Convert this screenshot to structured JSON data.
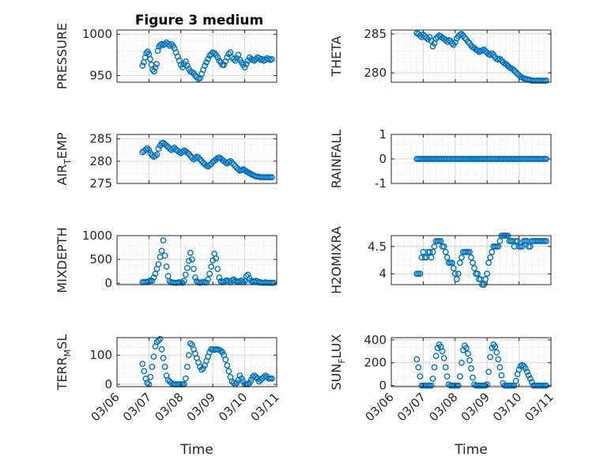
{
  "figure": {
    "title": "Figure 3 medium",
    "marker_color": "#0072BD",
    "x_ticks": [
      "03/06",
      "03/07",
      "03/08",
      "03/09",
      "03/10",
      "03/11"
    ],
    "x_label": "Time"
  },
  "chart_data": [
    {
      "type": "scatter",
      "ylabel": "PRESSURE",
      "yticks": [
        950,
        1000
      ],
      "ylim": [
        942,
        1005
      ],
      "grid": true,
      "x": [
        0.8,
        0.84,
        0.88,
        0.92,
        0.96,
        1.0,
        1.04,
        1.08,
        1.12,
        1.16,
        1.2,
        1.24,
        1.28,
        1.32,
        1.36,
        1.4,
        1.45,
        1.5,
        1.55,
        1.6,
        1.65,
        1.7,
        1.75,
        1.8,
        1.85,
        1.9,
        1.95,
        2.0,
        2.05,
        2.1,
        2.15,
        2.2,
        2.25,
        2.3,
        2.35,
        2.4,
        2.45,
        2.5,
        2.55,
        2.6,
        2.65,
        2.7,
        2.75,
        2.8,
        2.85,
        2.9,
        2.95,
        3.0,
        3.05,
        3.1,
        3.15,
        3.2,
        3.25,
        3.3,
        3.35,
        3.4,
        3.45,
        3.5,
        3.55,
        3.6,
        3.65,
        3.7,
        3.75,
        3.8,
        3.85,
        3.9,
        3.95,
        4.0,
        4.05,
        4.1,
        4.15,
        4.2,
        4.25,
        4.3,
        4.35,
        4.4,
        4.45,
        4.5,
        4.55,
        4.6,
        4.65,
        4.7,
        4.75,
        4.8,
        4.85
      ],
      "y": [
        962,
        966,
        972,
        977,
        979,
        976,
        970,
        963,
        957,
        955,
        960,
        964,
        980,
        985,
        987,
        988,
        987,
        988,
        990,
        988,
        986,
        988,
        986,
        983,
        978,
        973,
        968,
        963,
        960,
        964,
        967,
        962,
        958,
        955,
        954,
        953,
        950,
        948,
        946,
        947,
        952,
        957,
        962,
        966,
        970,
        974,
        976,
        978,
        977,
        975,
        972,
        968,
        966,
        963,
        963,
        967,
        972,
        976,
        978,
        972,
        970,
        968,
        971,
        975,
        969,
        966,
        963,
        960,
        964,
        968,
        972,
        970,
        969,
        968,
        970,
        972,
        971,
        969,
        970,
        968,
        969,
        971,
        970,
        969,
        970
      ]
    },
    {
      "type": "scatter",
      "ylabel": "THETA",
      "yticks": [
        280,
        285
      ],
      "ylim": [
        278.8,
        285.5
      ],
      "grid": true,
      "x": [
        0.8,
        0.85,
        0.9,
        0.95,
        1.0,
        1.05,
        1.1,
        1.15,
        1.2,
        1.25,
        1.3,
        1.35,
        1.4,
        1.45,
        1.5,
        1.55,
        1.6,
        1.65,
        1.7,
        1.75,
        1.8,
        1.85,
        1.9,
        1.95,
        2.0,
        2.05,
        2.1,
        2.15,
        2.2,
        2.25,
        2.3,
        2.35,
        2.4,
        2.45,
        2.5,
        2.55,
        2.6,
        2.65,
        2.7,
        2.75,
        2.8,
        2.85,
        2.9,
        2.95,
        3.0,
        3.05,
        3.1,
        3.15,
        3.2,
        3.25,
        3.3,
        3.35,
        3.4,
        3.45,
        3.5,
        3.55,
        3.6,
        3.65,
        3.7,
        3.75,
        3.8,
        3.85,
        3.9,
        3.95,
        4.0,
        4.05,
        4.1,
        4.15,
        4.2,
        4.25,
        4.3,
        4.35,
        4.4,
        4.45,
        4.5,
        4.55,
        4.6,
        4.65,
        4.7,
        4.75,
        4.8,
        4.85
      ],
      "y": [
        285.1,
        285.0,
        284.8,
        284.6,
        284.9,
        284.7,
        284.5,
        284.3,
        284.6,
        284.1,
        283.4,
        283.8,
        284.4,
        284.6,
        284.8,
        284.7,
        284.5,
        284.4,
        284.2,
        284.0,
        284.2,
        284.1,
        283.8,
        283.6,
        283.9,
        284.4,
        284.7,
        284.9,
        285.0,
        284.8,
        284.5,
        284.3,
        284.0,
        283.8,
        283.5,
        283.3,
        283.2,
        283.0,
        282.9,
        282.7,
        282.8,
        282.9,
        283.0,
        282.8,
        282.6,
        282.4,
        282.3,
        282.5,
        282.3,
        282.0,
        281.8,
        281.7,
        281.8,
        281.6,
        281.4,
        281.2,
        281.1,
        280.9,
        280.7,
        280.6,
        280.5,
        280.3,
        280.1,
        279.9,
        279.7,
        279.5,
        279.4,
        279.3,
        279.2,
        279.2,
        279.1,
        279.1,
        279.0,
        279.0,
        279.0,
        279.0,
        279.0,
        279.0,
        279.0,
        279.0,
        279.0,
        279.0
      ]
    },
    {
      "type": "scatter",
      "ylabel": "AIR_TEMP",
      "yticks": [
        275,
        280,
        285
      ],
      "ylim": [
        275,
        286
      ],
      "grid": true,
      "x": [
        0.8,
        0.85,
        0.9,
        0.95,
        1.0,
        1.05,
        1.1,
        1.15,
        1.2,
        1.25,
        1.3,
        1.35,
        1.4,
        1.45,
        1.5,
        1.55,
        1.6,
        1.65,
        1.7,
        1.75,
        1.8,
        1.85,
        1.9,
        1.95,
        2.0,
        2.05,
        2.1,
        2.15,
        2.2,
        2.25,
        2.3,
        2.35,
        2.4,
        2.45,
        2.5,
        2.55,
        2.6,
        2.65,
        2.7,
        2.75,
        2.8,
        2.85,
        2.9,
        2.95,
        3.0,
        3.05,
        3.1,
        3.15,
        3.2,
        3.25,
        3.3,
        3.35,
        3.4,
        3.45,
        3.5,
        3.55,
        3.6,
        3.65,
        3.7,
        3.75,
        3.8,
        3.85,
        3.9,
        3.95,
        4.0,
        4.05,
        4.1,
        4.15,
        4.2,
        4.25,
        4.3,
        4.35,
        4.4,
        4.45,
        4.5,
        4.55,
        4.6,
        4.65,
        4.7,
        4.75,
        4.8,
        4.85
      ],
      "y": [
        282.0,
        282.3,
        282.6,
        282.9,
        282.5,
        281.8,
        281.3,
        281.0,
        281.2,
        281.5,
        282.8,
        283.5,
        284.0,
        284.1,
        283.8,
        283.5,
        283.2,
        282.8,
        282.5,
        282.8,
        283.0,
        282.6,
        282.3,
        282.0,
        281.8,
        282.1,
        282.4,
        282.2,
        281.9,
        281.6,
        281.2,
        280.8,
        280.4,
        280.7,
        281.0,
        280.8,
        280.4,
        280.0,
        279.6,
        279.3,
        279.0,
        278.8,
        279.1,
        279.4,
        279.8,
        280.1,
        280.4,
        280.7,
        280.8,
        280.6,
        280.3,
        280.0,
        279.7,
        279.5,
        279.8,
        280.0,
        279.7,
        279.3,
        278.9,
        278.5,
        278.2,
        277.9,
        278.0,
        278.2,
        278.0,
        277.7,
        277.5,
        277.3,
        277.1,
        276.9,
        276.7,
        276.6,
        276.5,
        276.5,
        276.4,
        276.4,
        276.4,
        276.4,
        276.4,
        276.4,
        276.4,
        276.4
      ]
    },
    {
      "type": "scatter",
      "ylabel": "RAINFALL",
      "yticks": [
        -1,
        0,
        1
      ],
      "ylim": [
        -1,
        1
      ],
      "grid": true,
      "x": [
        0.8,
        0.85,
        0.9,
        0.95,
        1.0,
        1.05,
        1.1,
        1.15,
        1.2,
        1.25,
        1.3,
        1.35,
        1.4,
        1.45,
        1.5,
        1.55,
        1.6,
        1.65,
        1.7,
        1.75,
        1.8,
        1.85,
        1.9,
        1.95,
        2.0,
        2.05,
        2.1,
        2.15,
        2.2,
        2.25,
        2.3,
        2.35,
        2.4,
        2.45,
        2.5,
        2.55,
        2.6,
        2.65,
        2.7,
        2.75,
        2.8,
        2.85,
        2.9,
        2.95,
        3.0,
        3.05,
        3.1,
        3.15,
        3.2,
        3.25,
        3.3,
        3.35,
        3.4,
        3.45,
        3.5,
        3.55,
        3.6,
        3.65,
        3.7,
        3.75,
        3.8,
        3.85,
        3.9,
        3.95,
        4.0,
        4.05,
        4.1,
        4.15,
        4.2,
        4.25,
        4.3,
        4.35,
        4.4,
        4.45,
        4.5,
        4.55,
        4.6,
        4.65,
        4.7,
        4.75,
        4.8,
        4.85
      ],
      "y": [
        0,
        0,
        0,
        0,
        0,
        0,
        0,
        0,
        0,
        0,
        0,
        0,
        0,
        0,
        0,
        0,
        0,
        0,
        0,
        0,
        0,
        0,
        0,
        0,
        0,
        0,
        0,
        0,
        0,
        0,
        0,
        0,
        0,
        0,
        0,
        0,
        0,
        0,
        0,
        0,
        0,
        0,
        0,
        0,
        0,
        0,
        0,
        0,
        0,
        0,
        0,
        0,
        0,
        0,
        0,
        0,
        0,
        0,
        0,
        0,
        0,
        0,
        0,
        0,
        0,
        0,
        0,
        0,
        0,
        0,
        0,
        0,
        0,
        0,
        0,
        0,
        0,
        0,
        0,
        0,
        0,
        0
      ]
    },
    {
      "type": "scatter",
      "ylabel": "MIXDEPTH",
      "yticks": [
        0,
        500,
        1000
      ],
      "ylim": [
        -30,
        1000
      ],
      "grid": true,
      "x": [
        0.8,
        0.85,
        0.9,
        0.95,
        1.0,
        1.05,
        1.1,
        1.15,
        1.2,
        1.25,
        1.3,
        1.35,
        1.4,
        1.45,
        1.5,
        1.55,
        1.6,
        1.65,
        1.7,
        1.75,
        1.8,
        1.85,
        1.9,
        1.95,
        2.0,
        2.05,
        2.1,
        2.15,
        2.2,
        2.25,
        2.3,
        2.35,
        2.4,
        2.45,
        2.5,
        2.55,
        2.6,
        2.65,
        2.7,
        2.75,
        2.8,
        2.85,
        2.9,
        2.95,
        3.0,
        3.05,
        3.1,
        3.15,
        3.2,
        3.25,
        3.3,
        3.35,
        3.4,
        3.45,
        3.5,
        3.55,
        3.6,
        3.65,
        3.7,
        3.75,
        3.8,
        3.85,
        3.9,
        3.95,
        4.0,
        4.05,
        4.1,
        4.15,
        4.2,
        4.25,
        4.3,
        4.35,
        4.4,
        4.45,
        4.5,
        4.55,
        4.6,
        4.65,
        4.7,
        4.75,
        4.8,
        4.85,
        4.9
      ],
      "y": [
        20,
        25,
        30,
        20,
        40,
        60,
        50,
        120,
        200,
        300,
        400,
        550,
        680,
        900,
        580,
        350,
        150,
        40,
        20,
        15,
        10,
        10,
        15,
        20,
        20,
        10,
        50,
        180,
        320,
        470,
        640,
        500,
        300,
        120,
        40,
        20,
        10,
        20,
        30,
        20,
        15,
        80,
        200,
        350,
        480,
        620,
        520,
        300,
        120,
        40,
        20,
        30,
        50,
        60,
        40,
        20,
        60,
        80,
        50,
        40,
        30,
        40,
        60,
        20,
        40,
        150,
        180,
        100,
        50,
        40,
        30,
        50,
        40,
        20,
        20,
        10,
        10,
        20,
        10,
        10,
        10,
        10,
        10
      ]
    },
    {
      "type": "scatter",
      "ylabel": "H2OMIXRA",
      "yticks": [
        4,
        4.5
      ],
      "ylim": [
        3.8,
        4.7
      ],
      "grid": true,
      "x": [
        0.8,
        0.85,
        0.9,
        0.95,
        1.0,
        1.05,
        1.1,
        1.15,
        1.2,
        1.25,
        1.3,
        1.35,
        1.4,
        1.45,
        1.5,
        1.55,
        1.6,
        1.65,
        1.7,
        1.75,
        1.8,
        1.85,
        1.9,
        1.95,
        2.0,
        2.05,
        2.1,
        2.15,
        2.2,
        2.25,
        2.3,
        2.35,
        2.4,
        2.45,
        2.5,
        2.55,
        2.6,
        2.65,
        2.7,
        2.75,
        2.8,
        2.85,
        2.9,
        2.95,
        3.0,
        3.05,
        3.1,
        3.15,
        3.2,
        3.25,
        3.3,
        3.35,
        3.4,
        3.45,
        3.5,
        3.55,
        3.6,
        3.65,
        3.7,
        3.75,
        3.8,
        3.85,
        3.9,
        3.95,
        4.0,
        4.05,
        4.1,
        4.15,
        4.2,
        4.25,
        4.3,
        4.35,
        4.4,
        4.45,
        4.5,
        4.55,
        4.6,
        4.65,
        4.7,
        4.75,
        4.8,
        4.85
      ],
      "y": [
        4.0,
        4.0,
        4.0,
        4.3,
        4.4,
        4.3,
        4.3,
        4.4,
        4.4,
        4.3,
        4.4,
        4.5,
        4.6,
        4.6,
        4.6,
        4.6,
        4.5,
        4.5,
        4.4,
        4.3,
        4.2,
        4.2,
        4.2,
        4.1,
        4.0,
        3.9,
        4.0,
        4.2,
        4.3,
        4.4,
        4.4,
        4.4,
        4.4,
        4.4,
        4.3,
        4.2,
        4.1,
        4.0,
        4.0,
        3.9,
        3.9,
        3.8,
        3.8,
        3.9,
        4.0,
        4.2,
        4.3,
        4.4,
        4.5,
        4.5,
        4.5,
        4.5,
        4.6,
        4.7,
        4.7,
        4.7,
        4.7,
        4.7,
        4.6,
        4.6,
        4.6,
        4.5,
        4.6,
        4.6,
        4.5,
        4.5,
        4.5,
        4.6,
        4.6,
        4.6,
        4.5,
        4.5,
        4.6,
        4.6,
        4.6,
        4.6,
        4.6,
        4.6,
        4.6,
        4.6,
        4.6,
        4.6
      ]
    },
    {
      "type": "scatter",
      "ylabel": "TERR_MSL",
      "yticks": [
        0,
        100
      ],
      "ylim": [
        -8,
        160
      ],
      "grid": true,
      "x": [
        0.8,
        0.85,
        0.9,
        0.95,
        1.0,
        1.05,
        1.1,
        1.15,
        1.2,
        1.25,
        1.3,
        1.35,
        1.4,
        1.45,
        1.5,
        1.55,
        1.6,
        1.65,
        1.7,
        1.75,
        1.8,
        1.85,
        1.9,
        1.95,
        2.0,
        2.05,
        2.1,
        2.15,
        2.2,
        2.25,
        2.3,
        2.35,
        2.4,
        2.45,
        2.5,
        2.55,
        2.6,
        2.65,
        2.7,
        2.75,
        2.8,
        2.85,
        2.9,
        2.95,
        3.0,
        3.05,
        3.1,
        3.15,
        3.2,
        3.25,
        3.3,
        3.35,
        3.4,
        3.45,
        3.5,
        3.55,
        3.6,
        3.65,
        3.7,
        3.75,
        3.8,
        3.85,
        3.9,
        3.95,
        4.0,
        4.05,
        4.1,
        4.15,
        4.2,
        4.25,
        4.3,
        4.35,
        4.4,
        4.45,
        4.5,
        4.55,
        4.6,
        4.65,
        4.7,
        4.75,
        4.8,
        4.85
      ],
      "y": [
        70,
        45,
        20,
        5,
        0,
        25,
        60,
        95,
        130,
        145,
        150,
        155,
        120,
        90,
        60,
        30,
        15,
        10,
        5,
        0,
        0,
        0,
        0,
        0,
        0,
        0,
        0,
        20,
        60,
        100,
        140,
        135,
        120,
        105,
        90,
        75,
        60,
        50,
        55,
        65,
        80,
        95,
        110,
        120,
        120,
        118,
        120,
        120,
        118,
        115,
        110,
        100,
        85,
        65,
        45,
        25,
        10,
        5,
        0,
        5,
        15,
        30,
        20,
        10,
        0,
        0,
        0,
        5,
        15,
        25,
        30,
        25,
        20,
        10,
        15,
        20,
        25,
        30,
        25,
        20,
        20,
        20
      ]
    },
    {
      "type": "scatter",
      "ylabel": "SUN_FLUX",
      "yticks": [
        0,
        200,
        400
      ],
      "ylim": [
        -10,
        420
      ],
      "grid": true,
      "x": [
        0.8,
        0.85,
        0.9,
        0.95,
        1.0,
        1.05,
        1.1,
        1.15,
        1.2,
        1.25,
        1.3,
        1.35,
        1.4,
        1.45,
        1.5,
        1.55,
        1.6,
        1.65,
        1.7,
        1.75,
        1.8,
        1.85,
        1.9,
        1.95,
        2.0,
        2.05,
        2.1,
        2.15,
        2.2,
        2.25,
        2.3,
        2.35,
        2.4,
        2.45,
        2.5,
        2.55,
        2.6,
        2.65,
        2.7,
        2.75,
        2.8,
        2.85,
        2.9,
        2.95,
        3.0,
        3.05,
        3.1,
        3.15,
        3.2,
        3.25,
        3.3,
        3.35,
        3.4,
        3.45,
        3.5,
        3.55,
        3.6,
        3.65,
        3.7,
        3.75,
        3.8,
        3.85,
        3.9,
        3.95,
        4.0,
        4.05,
        4.1,
        4.15,
        4.2,
        4.25,
        4.3,
        4.35,
        4.4,
        4.45,
        4.5,
        4.55,
        4.6,
        4.65,
        4.7,
        4.75,
        4.8,
        4.85
      ],
      "y": [
        230,
        160,
        80,
        0,
        0,
        0,
        0,
        0,
        0,
        0,
        60,
        160,
        260,
        330,
        360,
        340,
        300,
        240,
        160,
        80,
        10,
        0,
        0,
        0,
        0,
        0,
        0,
        80,
        200,
        310,
        350,
        330,
        280,
        220,
        150,
        70,
        10,
        0,
        0,
        0,
        0,
        0,
        0,
        0,
        10,
        120,
        250,
        330,
        360,
        340,
        290,
        230,
        160,
        90,
        20,
        0,
        0,
        0,
        0,
        0,
        0,
        0,
        40,
        100,
        140,
        170,
        180,
        170,
        150,
        120,
        90,
        60,
        30,
        0,
        0,
        0,
        0,
        0,
        0,
        0,
        0,
        0
      ]
    }
  ]
}
